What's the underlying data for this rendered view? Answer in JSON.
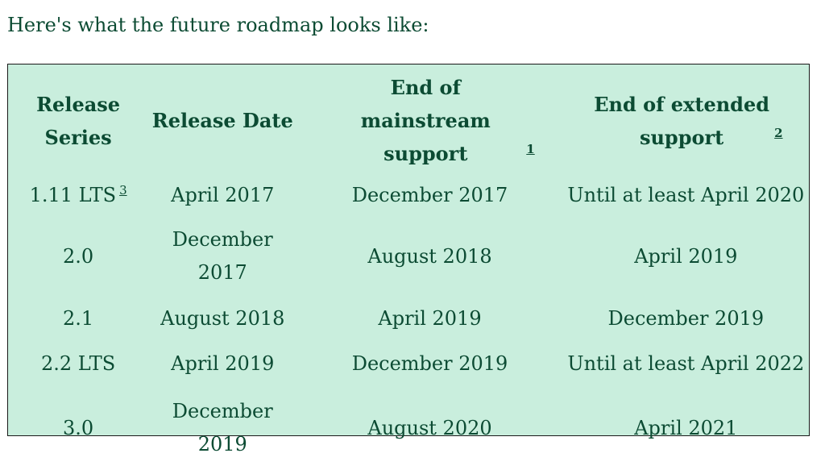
{
  "intro": "Here's what the future roadmap looks like:",
  "table": {
    "headers": {
      "release_series": "Release Series",
      "release_date": "Release Date",
      "mainstream": "End of mainstream support",
      "mainstream_fn": "1",
      "extended": "End of extended support",
      "extended_fn": "2"
    },
    "rows": [
      {
        "series": "1.11 LTS",
        "series_fn": "3",
        "date": "April 2017",
        "mainstream": "December 2017",
        "extended": "Until at least April 2020"
      },
      {
        "series": "2.0",
        "date": "December 2017",
        "mainstream": "August 2018",
        "extended": "April 2019"
      },
      {
        "series": "2.1",
        "date": "August 2018",
        "mainstream": "April 2019",
        "extended": "December 2019"
      },
      {
        "series": "2.2 LTS",
        "date": "April 2019",
        "mainstream": "December 2019",
        "extended": "Until at least April 2022"
      },
      {
        "series": "3.0",
        "date": "December 2019",
        "mainstream": "August 2020",
        "extended": "April 2021"
      }
    ]
  },
  "colors": {
    "text": "#0c4b33",
    "table_bg": "#c9eedd",
    "border": "#1a1a1a"
  }
}
